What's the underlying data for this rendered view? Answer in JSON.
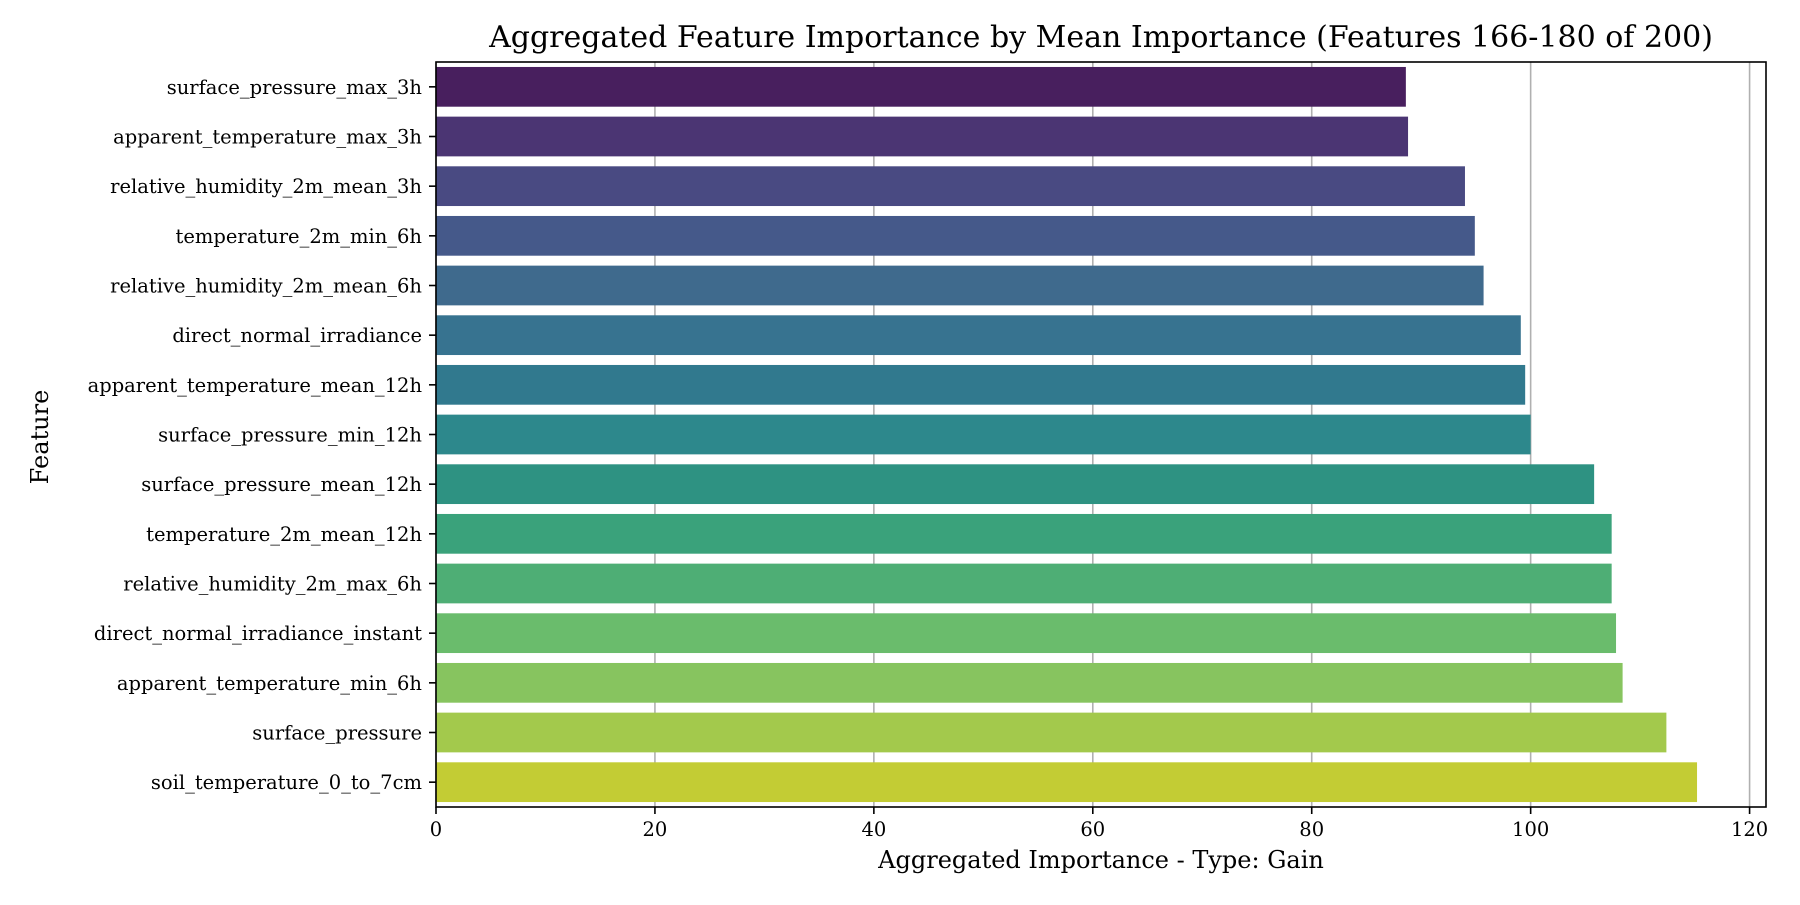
{
  "chart_data": {
    "type": "bar",
    "orientation": "horizontal",
    "title": "Aggregated Feature Importance by Mean Importance (Features 166-180 of 200)",
    "xlabel": "Aggregated Importance - Type: Gain",
    "ylabel": "Feature",
    "xlim": [
      0,
      121.5
    ],
    "xticks": [
      0,
      20,
      40,
      60,
      80,
      100,
      120
    ],
    "grid": "vertical",
    "legend": "none",
    "colormap": "viridis",
    "categories": [
      "surface_pressure_max_3h",
      "apparent_temperature_max_3h",
      "relative_humidity_2m_mean_3h",
      "temperature_2m_min_6h",
      "relative_humidity_2m_mean_6h",
      "direct_normal_irradiance",
      "apparent_temperature_mean_12h",
      "surface_pressure_min_12h",
      "surface_pressure_mean_12h",
      "temperature_2m_mean_12h",
      "relative_humidity_2m_max_6h",
      "direct_normal_irradiance_instant",
      "apparent_temperature_min_6h",
      "surface_pressure",
      "soil_temperature_0_to_7cm"
    ],
    "values": [
      88.6,
      88.8,
      94.0,
      94.9,
      95.7,
      99.1,
      99.5,
      100.0,
      105.8,
      107.4,
      107.4,
      107.8,
      108.4,
      112.4,
      115.2
    ],
    "colors": [
      "#481f5e",
      "#4b3573",
      "#494a82",
      "#45598a",
      "#3f6a8d",
      "#377390",
      "#31798e",
      "#2d888c",
      "#2e9282",
      "#3aa27b",
      "#4eae75",
      "#6abc6c",
      "#87c45f",
      "#a3c94c",
      "#c3cc34"
    ]
  }
}
